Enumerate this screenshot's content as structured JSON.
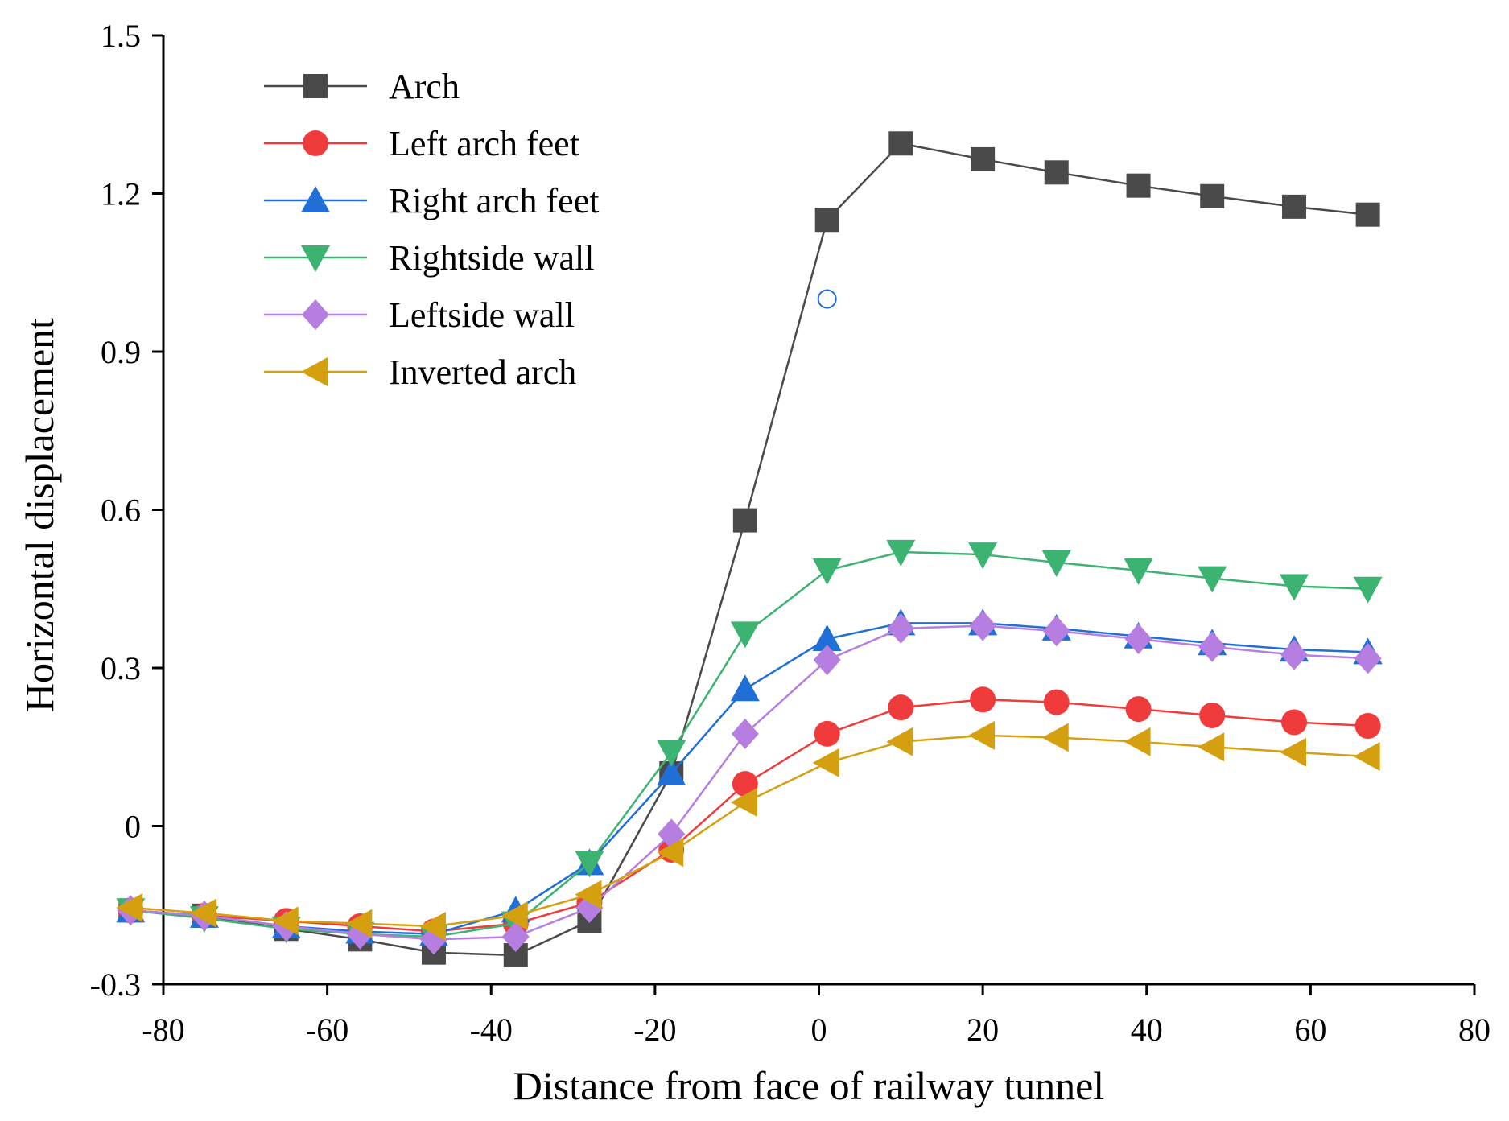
{
  "chart_data": {
    "type": "line",
    "title": "",
    "xlabel": "Distance from face of railway tunnel",
    "ylabel": "Horizontal displacement",
    "xlim": [
      -80,
      80
    ],
    "ylim": [
      -0.3,
      1.5
    ],
    "xticks": [
      -80,
      -60,
      -40,
      -20,
      0,
      20,
      40,
      60,
      80
    ],
    "yticks": [
      -0.3,
      0,
      0.3,
      0.6,
      0.9,
      1.2,
      1.5
    ],
    "xtick_labels": [
      "-80",
      "-60",
      "-40",
      "-20",
      "0",
      "20",
      "40",
      "60",
      "80"
    ],
    "ytick_labels": [
      "-0.3",
      "0",
      "0.3",
      "0.6",
      "0.9",
      "1.2",
      "1.5"
    ],
    "legend_position": "top-left",
    "x": [
      -84,
      -75,
      -65,
      -56,
      -47,
      -37,
      -28,
      -18,
      -9,
      1,
      10,
      20,
      29,
      39,
      48,
      58,
      67
    ],
    "series": [
      {
        "name": "Arch",
        "color": "#4a4a4a",
        "marker": "square",
        "values": [
          -0.16,
          -0.17,
          -0.195,
          -0.215,
          -0.24,
          -0.245,
          -0.18,
          0.1,
          0.58,
          1.15,
          1.295,
          1.265,
          1.24,
          1.215,
          1.195,
          1.175,
          1.16
        ]
      },
      {
        "name": "Left arch feet",
        "color": "#ef3b3b",
        "marker": "circle",
        "values": [
          -0.16,
          -0.17,
          -0.18,
          -0.19,
          -0.2,
          -0.185,
          -0.145,
          -0.045,
          0.08,
          0.175,
          0.225,
          0.24,
          0.235,
          0.222,
          0.21,
          0.197,
          0.19
        ]
      },
      {
        "name": "Right arch feet",
        "color": "#1f6fd6",
        "marker": "triangle-up",
        "values": [
          -0.16,
          -0.17,
          -0.19,
          -0.2,
          -0.205,
          -0.16,
          -0.07,
          0.1,
          0.26,
          0.355,
          0.385,
          0.385,
          0.375,
          0.36,
          0.347,
          0.335,
          0.33
        ]
      },
      {
        "name": "Rightside wall",
        "color": "#3cb371",
        "marker": "triangle-down",
        "values": [
          -0.16,
          -0.175,
          -0.195,
          -0.205,
          -0.21,
          -0.185,
          -0.07,
          0.14,
          0.365,
          0.485,
          0.52,
          0.515,
          0.5,
          0.485,
          0.47,
          0.455,
          0.45
        ]
      },
      {
        "name": "Leftside wall",
        "color": "#b57ee0",
        "marker": "diamond",
        "values": [
          -0.16,
          -0.17,
          -0.19,
          -0.205,
          -0.215,
          -0.21,
          -0.155,
          -0.015,
          0.175,
          0.315,
          0.375,
          0.38,
          0.37,
          0.355,
          0.34,
          0.325,
          0.318
        ]
      },
      {
        "name": "Inverted arch",
        "color": "#d4a010",
        "marker": "triangle-left",
        "values": [
          -0.155,
          -0.165,
          -0.18,
          -0.185,
          -0.19,
          -0.17,
          -0.13,
          -0.05,
          0.045,
          0.12,
          0.16,
          0.172,
          0.168,
          0.16,
          0.15,
          0.14,
          0.132
        ]
      }
    ],
    "annotations": [
      {
        "type": "open-circle-marker",
        "x": 1,
        "y": 1.0,
        "color": "#1f6fd6"
      }
    ]
  }
}
